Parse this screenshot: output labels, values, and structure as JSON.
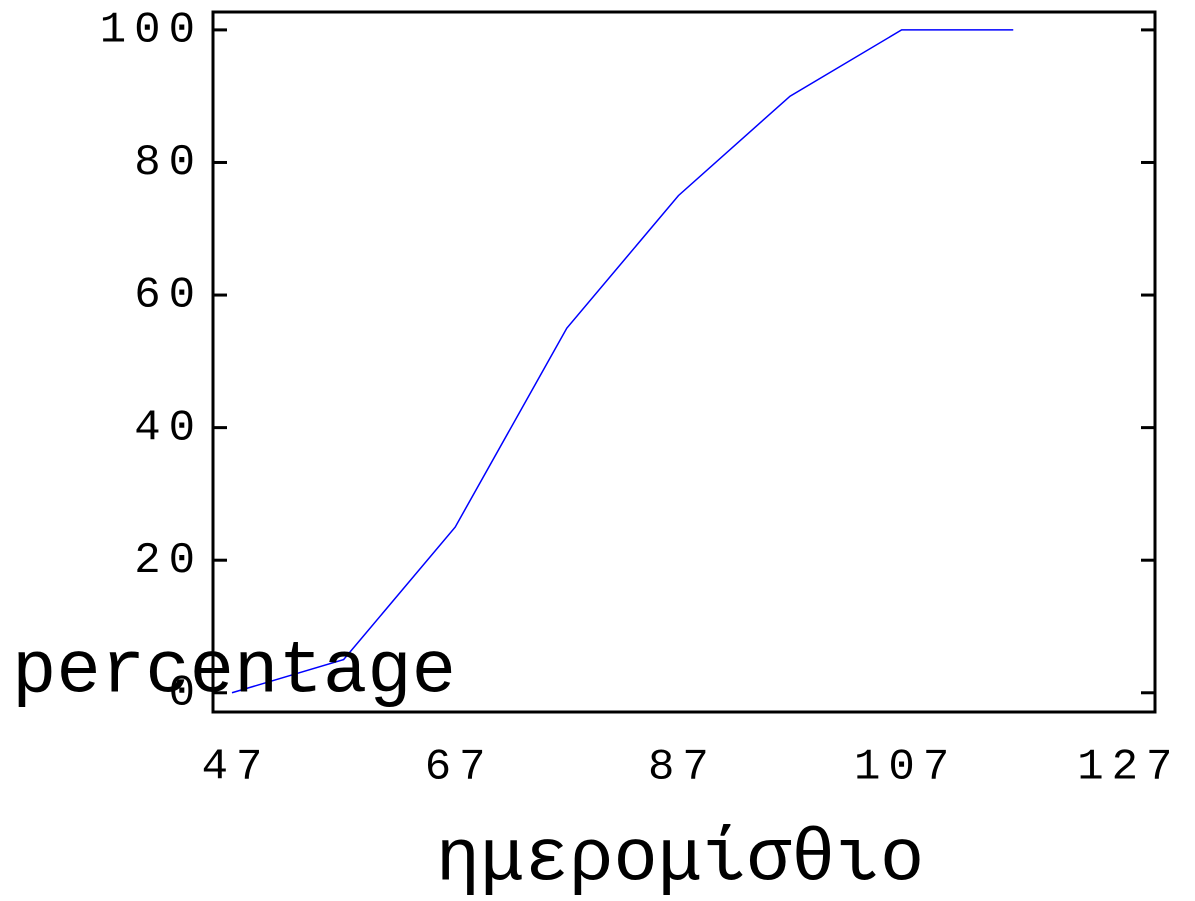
{
  "chart_data": {
    "type": "line",
    "x_label": "ημερομίσθιο",
    "y_label": "percentage",
    "x": [
      47,
      57,
      67,
      77,
      87,
      97,
      107,
      117
    ],
    "series": [
      {
        "color": "#0000ff",
        "values": [
          0,
          5,
          25,
          55,
          75,
          90,
          100,
          100
        ]
      }
    ],
    "xlim": [
      45.3,
      129.7
    ],
    "xticks": [
      47,
      67,
      87,
      107,
      127
    ],
    "ylim": [
      -2.9,
      102.7
    ],
    "yticks": [
      0,
      20,
      40,
      60,
      80,
      100
    ]
  }
}
